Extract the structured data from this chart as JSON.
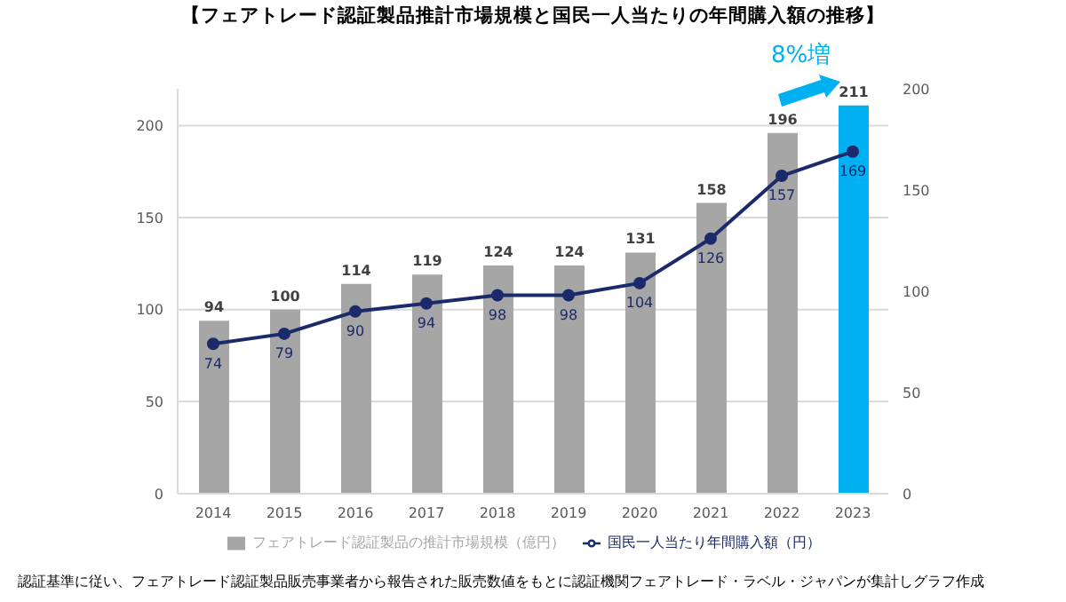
{
  "chart_data": {
    "type": "bar",
    "title": "【フェアトレード認証製品推計市場規模と国民一人当たりの年間購入額の推移】",
    "categories": [
      "2014",
      "2015",
      "2016",
      "2017",
      "2018",
      "2019",
      "2020",
      "2021",
      "2022",
      "2023"
    ],
    "series": [
      {
        "name": "フェアトレード認証製品の推計市場規模（億円）",
        "color": "#a6a6a6",
        "colors": [
          "#a6a6a6",
          "#a6a6a6",
          "#a6a6a6",
          "#a6a6a6",
          "#a6a6a6",
          "#a6a6a6",
          "#a6a6a6",
          "#a6a6a6",
          "#a6a6a6",
          "#00b0f0"
        ],
        "values": [
          94,
          100,
          114,
          119,
          124,
          124,
          131,
          158,
          196,
          211
        ]
      },
      {
        "name": "国民一人当たり年間購入額（円）",
        "type": "line",
        "axis": "y2",
        "color": "#1b2a6b",
        "values": [
          74,
          79,
          90,
          94,
          98,
          98,
          104,
          126,
          157,
          169
        ]
      }
    ],
    "ylim": [
      0,
      220
    ],
    "yticks": [
      0,
      50,
      100,
      150,
      200
    ],
    "y2lim": [
      0,
      200
    ],
    "y2ticks": [
      0,
      50,
      100,
      150,
      200
    ],
    "grid": "y",
    "legend": "bottom",
    "marker": "circle",
    "data_labels": true,
    "annotations": [
      "8%増",
      "認証基準に従い、フェアトレード認証製品販売事業者から報告された販売数値をもとに認証機関フェアトレード・ラベル・ジャパンが集計しグラフ作成"
    ]
  }
}
